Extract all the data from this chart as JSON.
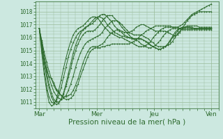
{
  "bg_color": "#cce8e0",
  "grid_color": "#99bb99",
  "line_color": "#2d6a2d",
  "xlabel": "Pression niveau de la mer( hPa )",
  "xlabel_fontsize": 7.5,
  "yticks": [
    1011,
    1012,
    1013,
    1014,
    1015,
    1016,
    1017,
    1018
  ],
  "ylim": [
    1010.5,
    1018.8
  ],
  "xtick_labels": [
    "Mar",
    "Mer",
    "Jeu",
    "Ven"
  ],
  "xtick_positions": [
    0,
    48,
    96,
    144
  ],
  "xlim": [
    -3,
    150
  ],
  "series": [
    [
      1016.7,
      1015.5,
      1014.0,
      1013.5,
      1013.0,
      1012.8,
      1012.5,
      1012.0,
      1011.8,
      1011.5,
      1011.3,
      1011.2,
      1011.2,
      1011.3,
      1011.5,
      1011.9,
      1012.4,
      1013.0,
      1013.5,
      1014.0,
      1014.5,
      1014.9,
      1015.1,
      1015.2,
      1015.2,
      1015.2,
      1015.3,
      1015.3,
      1015.4,
      1015.4,
      1015.5,
      1015.5,
      1015.5,
      1015.5,
      1015.5,
      1015.5,
      1015.5,
      1015.5,
      1015.6,
      1015.7,
      1015.8,
      1016.0,
      1016.2,
      1016.3,
      1016.5,
      1016.6,
      1016.7,
      1016.8,
      1016.9,
      1016.9,
      1016.9,
      1016.9,
      1016.9,
      1016.9,
      1016.9,
      1016.8,
      1016.8,
      1016.8,
      1016.9,
      1017.0,
      1017.2,
      1017.4,
      1017.6,
      1017.8,
      1017.9,
      1018.0,
      1018.1,
      1018.2,
      1018.3,
      1018.4,
      1018.5,
      1018.6
    ],
    [
      1016.7,
      1015.8,
      1014.9,
      1014.1,
      1013.4,
      1012.8,
      1012.3,
      1011.9,
      1011.7,
      1011.5,
      1011.4,
      1011.4,
      1011.5,
      1011.6,
      1011.9,
      1012.3,
      1012.8,
      1013.4,
      1014.0,
      1014.5,
      1014.9,
      1015.2,
      1015.3,
      1015.3,
      1015.3,
      1015.4,
      1015.5,
      1015.7,
      1016.0,
      1016.2,
      1016.4,
      1016.5,
      1016.6,
      1016.6,
      1016.5,
      1016.4,
      1016.4,
      1016.4,
      1016.5,
      1016.6,
      1016.8,
      1016.9,
      1017.0,
      1017.0,
      1016.9,
      1016.8,
      1016.7,
      1016.6,
      1016.5,
      1016.5,
      1016.5,
      1016.5,
      1016.5,
      1016.4,
      1016.3,
      1016.2,
      1016.1,
      1016.2,
      1016.4,
      1016.7,
      1017.0,
      1017.3,
      1017.5,
      1017.7,
      1017.8,
      1017.9,
      1018.0,
      1018.0,
      1018.0,
      1018.0,
      1018.0,
      1018.0
    ],
    [
      1016.7,
      1015.7,
      1014.6,
      1013.7,
      1012.9,
      1012.3,
      1011.8,
      1011.5,
      1011.3,
      1011.2,
      1011.3,
      1011.5,
      1011.9,
      1012.4,
      1013.0,
      1013.7,
      1014.3,
      1014.8,
      1015.2,
      1015.5,
      1015.7,
      1015.8,
      1015.9,
      1016.0,
      1016.1,
      1016.2,
      1016.4,
      1016.7,
      1016.9,
      1017.1,
      1017.3,
      1017.3,
      1017.3,
      1017.2,
      1017.0,
      1016.8,
      1016.6,
      1016.4,
      1016.3,
      1016.2,
      1016.2,
      1016.2,
      1016.2,
      1016.1,
      1016.0,
      1015.9,
      1015.7,
      1015.6,
      1015.4,
      1015.3,
      1015.3,
      1015.3,
      1015.3,
      1015.4,
      1015.5,
      1015.7,
      1016.0,
      1016.3,
      1016.5,
      1016.7,
      1016.8,
      1016.9,
      1016.9,
      1016.9,
      1016.9,
      1016.9,
      1016.8,
      1016.8,
      1016.8,
      1016.8,
      1016.8,
      1016.8
    ],
    [
      1016.7,
      1015.6,
      1014.4,
      1013.3,
      1012.4,
      1011.7,
      1011.2,
      1011.0,
      1011.0,
      1011.2,
      1011.6,
      1012.2,
      1012.9,
      1013.6,
      1014.4,
      1015.0,
      1015.5,
      1015.9,
      1016.2,
      1016.4,
      1016.5,
      1016.5,
      1016.5,
      1016.6,
      1016.8,
      1017.0,
      1017.3,
      1017.5,
      1017.7,
      1017.7,
      1017.7,
      1017.5,
      1017.3,
      1017.1,
      1016.8,
      1016.6,
      1016.4,
      1016.2,
      1016.0,
      1015.9,
      1015.9,
      1015.9,
      1015.9,
      1015.8,
      1015.7,
      1015.6,
      1015.4,
      1015.3,
      1015.2,
      1015.1,
      1015.1,
      1015.2,
      1015.3,
      1015.5,
      1015.7,
      1016.0,
      1016.2,
      1016.5,
      1016.7,
      1016.8,
      1016.8,
      1016.8,
      1016.8,
      1016.8,
      1016.7,
      1016.7,
      1016.7,
      1016.7,
      1016.7,
      1016.7,
      1016.7,
      1016.7
    ],
    [
      1016.7,
      1015.4,
      1014.1,
      1013.0,
      1012.1,
      1011.4,
      1011.0,
      1010.8,
      1010.9,
      1011.2,
      1011.7,
      1012.4,
      1013.2,
      1014.0,
      1014.8,
      1015.4,
      1015.9,
      1016.3,
      1016.6,
      1016.8,
      1016.9,
      1017.0,
      1017.1,
      1017.3,
      1017.5,
      1017.7,
      1017.8,
      1017.8,
      1017.6,
      1017.4,
      1017.2,
      1016.9,
      1016.7,
      1016.5,
      1016.4,
      1016.2,
      1016.1,
      1016.0,
      1015.9,
      1015.9,
      1015.9,
      1015.9,
      1015.9,
      1015.8,
      1015.7,
      1015.5,
      1015.4,
      1015.3,
      1015.2,
      1015.1,
      1015.1,
      1015.2,
      1015.3,
      1015.5,
      1015.8,
      1016.1,
      1016.4,
      1016.6,
      1016.7,
      1016.8,
      1016.8,
      1016.8,
      1016.8,
      1016.7,
      1016.7,
      1016.7,
      1016.7,
      1016.7,
      1016.7,
      1016.7,
      1016.7,
      1016.7
    ],
    [
      1016.7,
      1015.1,
      1013.6,
      1012.3,
      1011.4,
      1011.0,
      1010.9,
      1011.1,
      1011.5,
      1012.1,
      1012.9,
      1013.7,
      1014.5,
      1015.1,
      1015.6,
      1016.0,
      1016.3,
      1016.5,
      1016.6,
      1016.7,
      1016.9,
      1017.1,
      1017.3,
      1017.5,
      1017.6,
      1017.6,
      1017.5,
      1017.3,
      1017.0,
      1016.8,
      1016.6,
      1016.4,
      1016.3,
      1016.2,
      1016.1,
      1016.1,
      1016.0,
      1016.0,
      1016.0,
      1015.9,
      1015.8,
      1015.7,
      1015.5,
      1015.4,
      1015.3,
      1015.2,
      1015.2,
      1015.3,
      1015.4,
      1015.6,
      1015.8,
      1016.1,
      1016.3,
      1016.5,
      1016.6,
      1016.7,
      1016.7,
      1016.7,
      1016.7,
      1016.6,
      1016.6,
      1016.6,
      1016.6,
      1016.6,
      1016.6,
      1016.6,
      1016.6,
      1016.6,
      1016.6,
      1016.6,
      1016.6,
      1016.6
    ],
    [
      1016.7,
      1014.8,
      1013.2,
      1011.9,
      1011.0,
      1010.7,
      1010.8,
      1011.2,
      1011.9,
      1012.7,
      1013.6,
      1014.4,
      1015.1,
      1015.7,
      1016.2,
      1016.5,
      1016.7,
      1016.8,
      1016.9,
      1017.1,
      1017.3,
      1017.5,
      1017.6,
      1017.6,
      1017.5,
      1017.3,
      1017.0,
      1016.8,
      1016.6,
      1016.4,
      1016.3,
      1016.2,
      1016.1,
      1016.0,
      1016.0,
      1015.9,
      1015.8,
      1015.7,
      1015.6,
      1015.5,
      1015.4,
      1015.3,
      1015.3,
      1015.3,
      1015.4,
      1015.5,
      1015.7,
      1016.0,
      1016.2,
      1016.4,
      1016.6,
      1016.7,
      1016.8,
      1016.8,
      1016.8,
      1016.8,
      1016.8,
      1016.8,
      1016.7,
      1016.7,
      1016.7,
      1016.7,
      1016.7,
      1016.7,
      1016.7,
      1016.7,
      1016.7,
      1016.7,
      1016.7,
      1016.7,
      1016.7,
      1016.7
    ]
  ]
}
